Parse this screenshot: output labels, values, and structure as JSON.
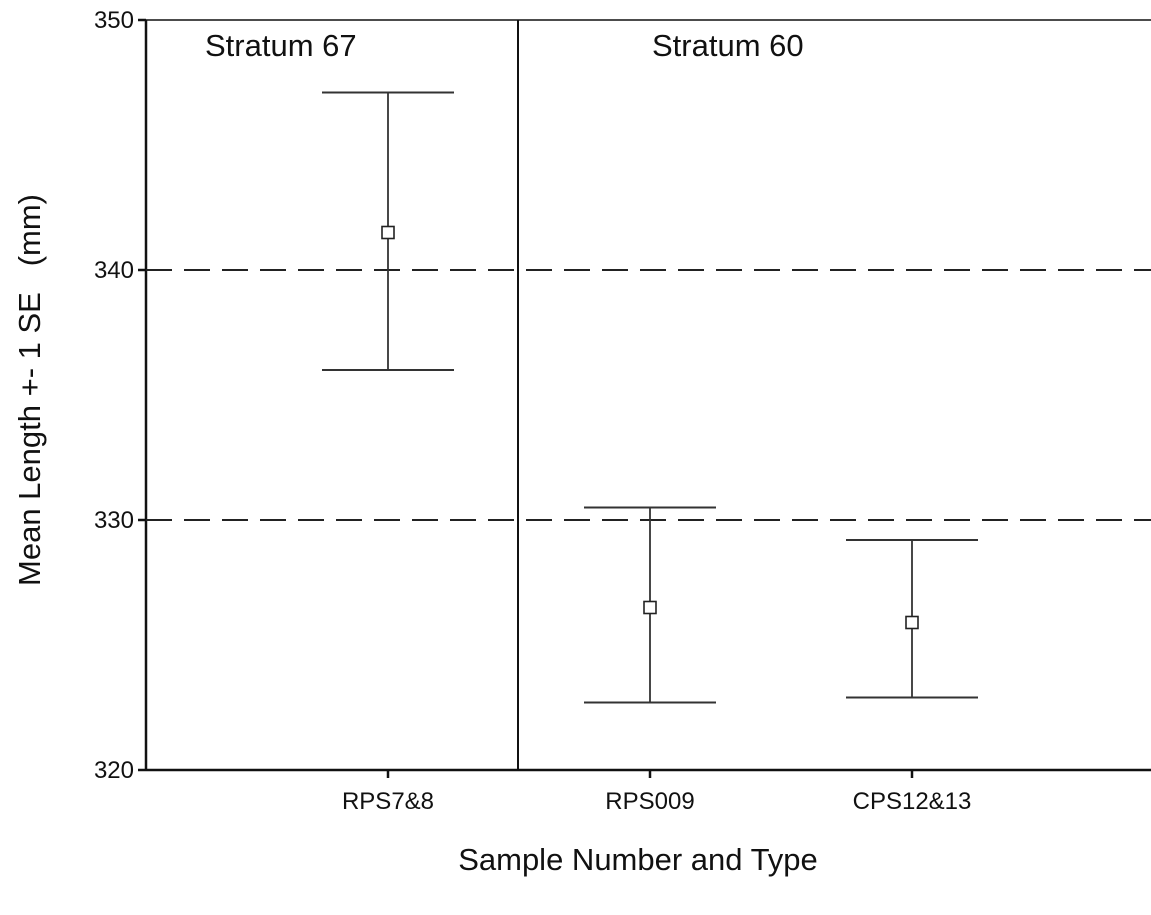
{
  "chart_data": {
    "type": "errorbar",
    "title": "",
    "xlabel": "Sample Number and Type",
    "ylabel": "Mean Length +- 1 SE   (mm)",
    "ylim": [
      320,
      350
    ],
    "yticks": [
      320,
      330,
      340,
      350
    ],
    "categories": [
      "RPS7&8",
      "RPS009",
      "CPS12&13"
    ],
    "means": [
      341.5,
      326.5,
      325.9
    ],
    "upper": [
      347.1,
      330.5,
      329.2
    ],
    "lower": [
      336.0,
      322.7,
      322.9
    ],
    "reference_lines": [
      330,
      340
    ],
    "reference_line_style": "dashed",
    "marker": "open-square",
    "grid": false,
    "panels": [
      {
        "label": "Stratum 67",
        "categories": [
          "RPS7&8"
        ]
      },
      {
        "label": "Stratum 60",
        "categories": [
          "RPS009",
          "CPS12&13"
        ]
      }
    ]
  }
}
